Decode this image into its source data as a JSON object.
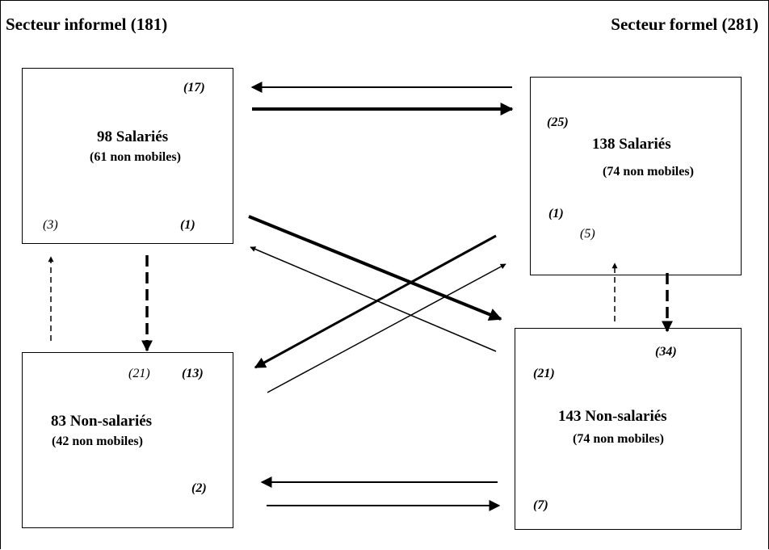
{
  "headers": {
    "informal": "Secteur informel (181)",
    "formal": "Secteur formel  (281)"
  },
  "informal_salaried": {
    "title": "98 Salariés",
    "subtitle": "(61 non mobiles)",
    "count_top": "(17)",
    "count_bottom_left": "(3)",
    "count_bottom_right": "(1)"
  },
  "informal_nonsalaried": {
    "title": "83 Non-salariés",
    "subtitle": "(42 non mobiles)",
    "count_top_a": "(21)",
    "count_top_b": "(13)",
    "count_bottom": "(2)"
  },
  "formal_salaried": {
    "title": "138 Salariés",
    "subtitle": "(74 non mobiles)",
    "count_top": "(25)",
    "count_mid_a": "(1)",
    "count_mid_b": "(5)"
  },
  "formal_nonsalaried": {
    "title": "143 Non-salariés",
    "subtitle": "(74 non mobiles)",
    "count_top": "(34)",
    "count_left": "(21)",
    "count_bottom": "(7)"
  }
}
